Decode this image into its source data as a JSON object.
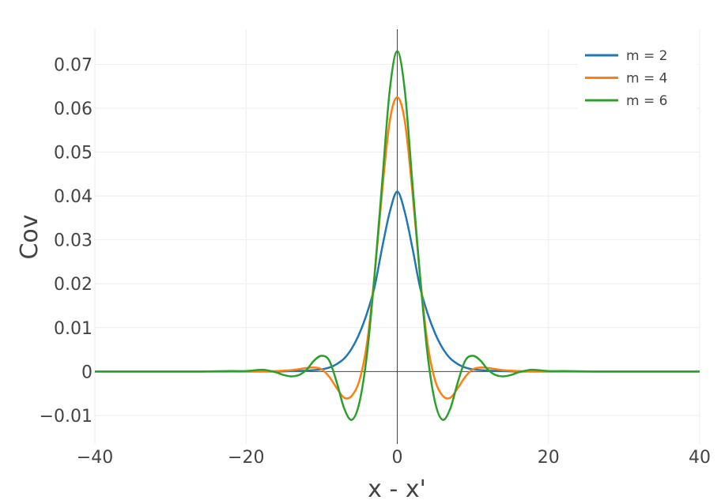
{
  "chart_data": {
    "type": "line",
    "title": "",
    "xlabel": "x - x'",
    "ylabel": "Cov",
    "xlim": [
      -40,
      40
    ],
    "ylim": [
      -0.0165,
      0.078
    ],
    "xticks": [
      -40,
      -20,
      0,
      20,
      40
    ],
    "xtick_labels": [
      "−40",
      "−20",
      "0",
      "20",
      "40"
    ],
    "yticks": [
      -0.01,
      0,
      0.01,
      0.02,
      0.03,
      0.04,
      0.05,
      0.06,
      0.07
    ],
    "ytick_labels": [
      "−0.01",
      "0",
      "0.01",
      "0.02",
      "0.03",
      "0.04",
      "0.05",
      "0.06",
      "0.07"
    ],
    "grid": true,
    "legend_position": "top-right",
    "series": [
      {
        "name": "m = 2",
        "color": "#1f77b4",
        "x": [
          -40,
          -30,
          -24,
          -20,
          -16,
          -14,
          -12,
          -10,
          -9,
          -8,
          -7,
          -6,
          -5,
          -4,
          -3,
          -2,
          -1,
          0,
          1,
          2,
          3,
          4,
          5,
          6,
          7,
          8,
          9,
          10,
          12,
          14,
          16,
          20,
          24,
          30,
          40
        ],
        "y": [
          0,
          0,
          0,
          0,
          0,
          0.0001,
          0.0002,
          0.0005,
          0.0009,
          0.0017,
          0.003,
          0.0053,
          0.0087,
          0.0133,
          0.0193,
          0.0282,
          0.0363,
          0.041,
          0.0363,
          0.0282,
          0.0193,
          0.0133,
          0.0087,
          0.0053,
          0.003,
          0.0017,
          0.0009,
          0.0005,
          0.0002,
          0.0001,
          0,
          0,
          0,
          0,
          0
        ]
      },
      {
        "name": "m = 4",
        "color": "#ff7f0e",
        "x": [
          -40,
          -30,
          -24,
          -20,
          -18,
          -16,
          -14,
          -12,
          -11,
          -10,
          -9,
          -8,
          -7,
          -6,
          -5,
          -4,
          -3,
          -2,
          -1,
          0,
          1,
          2,
          3,
          4,
          5,
          6,
          7,
          8,
          9,
          10,
          11,
          12,
          14,
          16,
          18,
          20,
          24,
          30,
          40
        ],
        "y": [
          0,
          0,
          0,
          0,
          0,
          0.0001,
          0.0003,
          0.0008,
          0.0009,
          0.0005,
          -0.0012,
          -0.0038,
          -0.006,
          -0.0055,
          -0.002,
          0.0065,
          0.022,
          0.041,
          0.057,
          0.0625,
          0.057,
          0.041,
          0.022,
          0.0065,
          -0.002,
          -0.0055,
          -0.006,
          -0.0038,
          -0.0012,
          0.0005,
          0.0009,
          0.0008,
          0.0003,
          0.0001,
          0,
          0,
          0,
          0,
          0
        ]
      },
      {
        "name": "m = 6",
        "color": "#2ca02c",
        "x": [
          -40,
          -30,
          -26,
          -22,
          -20,
          -18,
          -17,
          -16,
          -15,
          -14,
          -13,
          -12,
          -11,
          -10,
          -9,
          -8,
          -7,
          -6,
          -5,
          -4,
          -3,
          -2,
          -1,
          0,
          1,
          2,
          3,
          4,
          5,
          6,
          7,
          8,
          9,
          10,
          11,
          12,
          13,
          14,
          15,
          16,
          17,
          18,
          20,
          22,
          26,
          30,
          40
        ],
        "y": [
          0,
          0,
          0,
          0.0001,
          0.0001,
          0.0004,
          0.0002,
          -0.0002,
          -0.0008,
          -0.0011,
          -0.0008,
          0.0004,
          0.0025,
          0.0036,
          0.0025,
          -0.0025,
          -0.0085,
          -0.011,
          -0.007,
          0.004,
          0.022,
          0.043,
          0.064,
          0.073,
          0.064,
          0.043,
          0.022,
          0.004,
          -0.007,
          -0.011,
          -0.0085,
          -0.0025,
          0.0025,
          0.0036,
          0.0025,
          0.0004,
          -0.0008,
          -0.0011,
          -0.0008,
          -0.0002,
          0.0002,
          0.0004,
          0.0001,
          0.0001,
          0,
          0,
          0
        ]
      }
    ]
  }
}
